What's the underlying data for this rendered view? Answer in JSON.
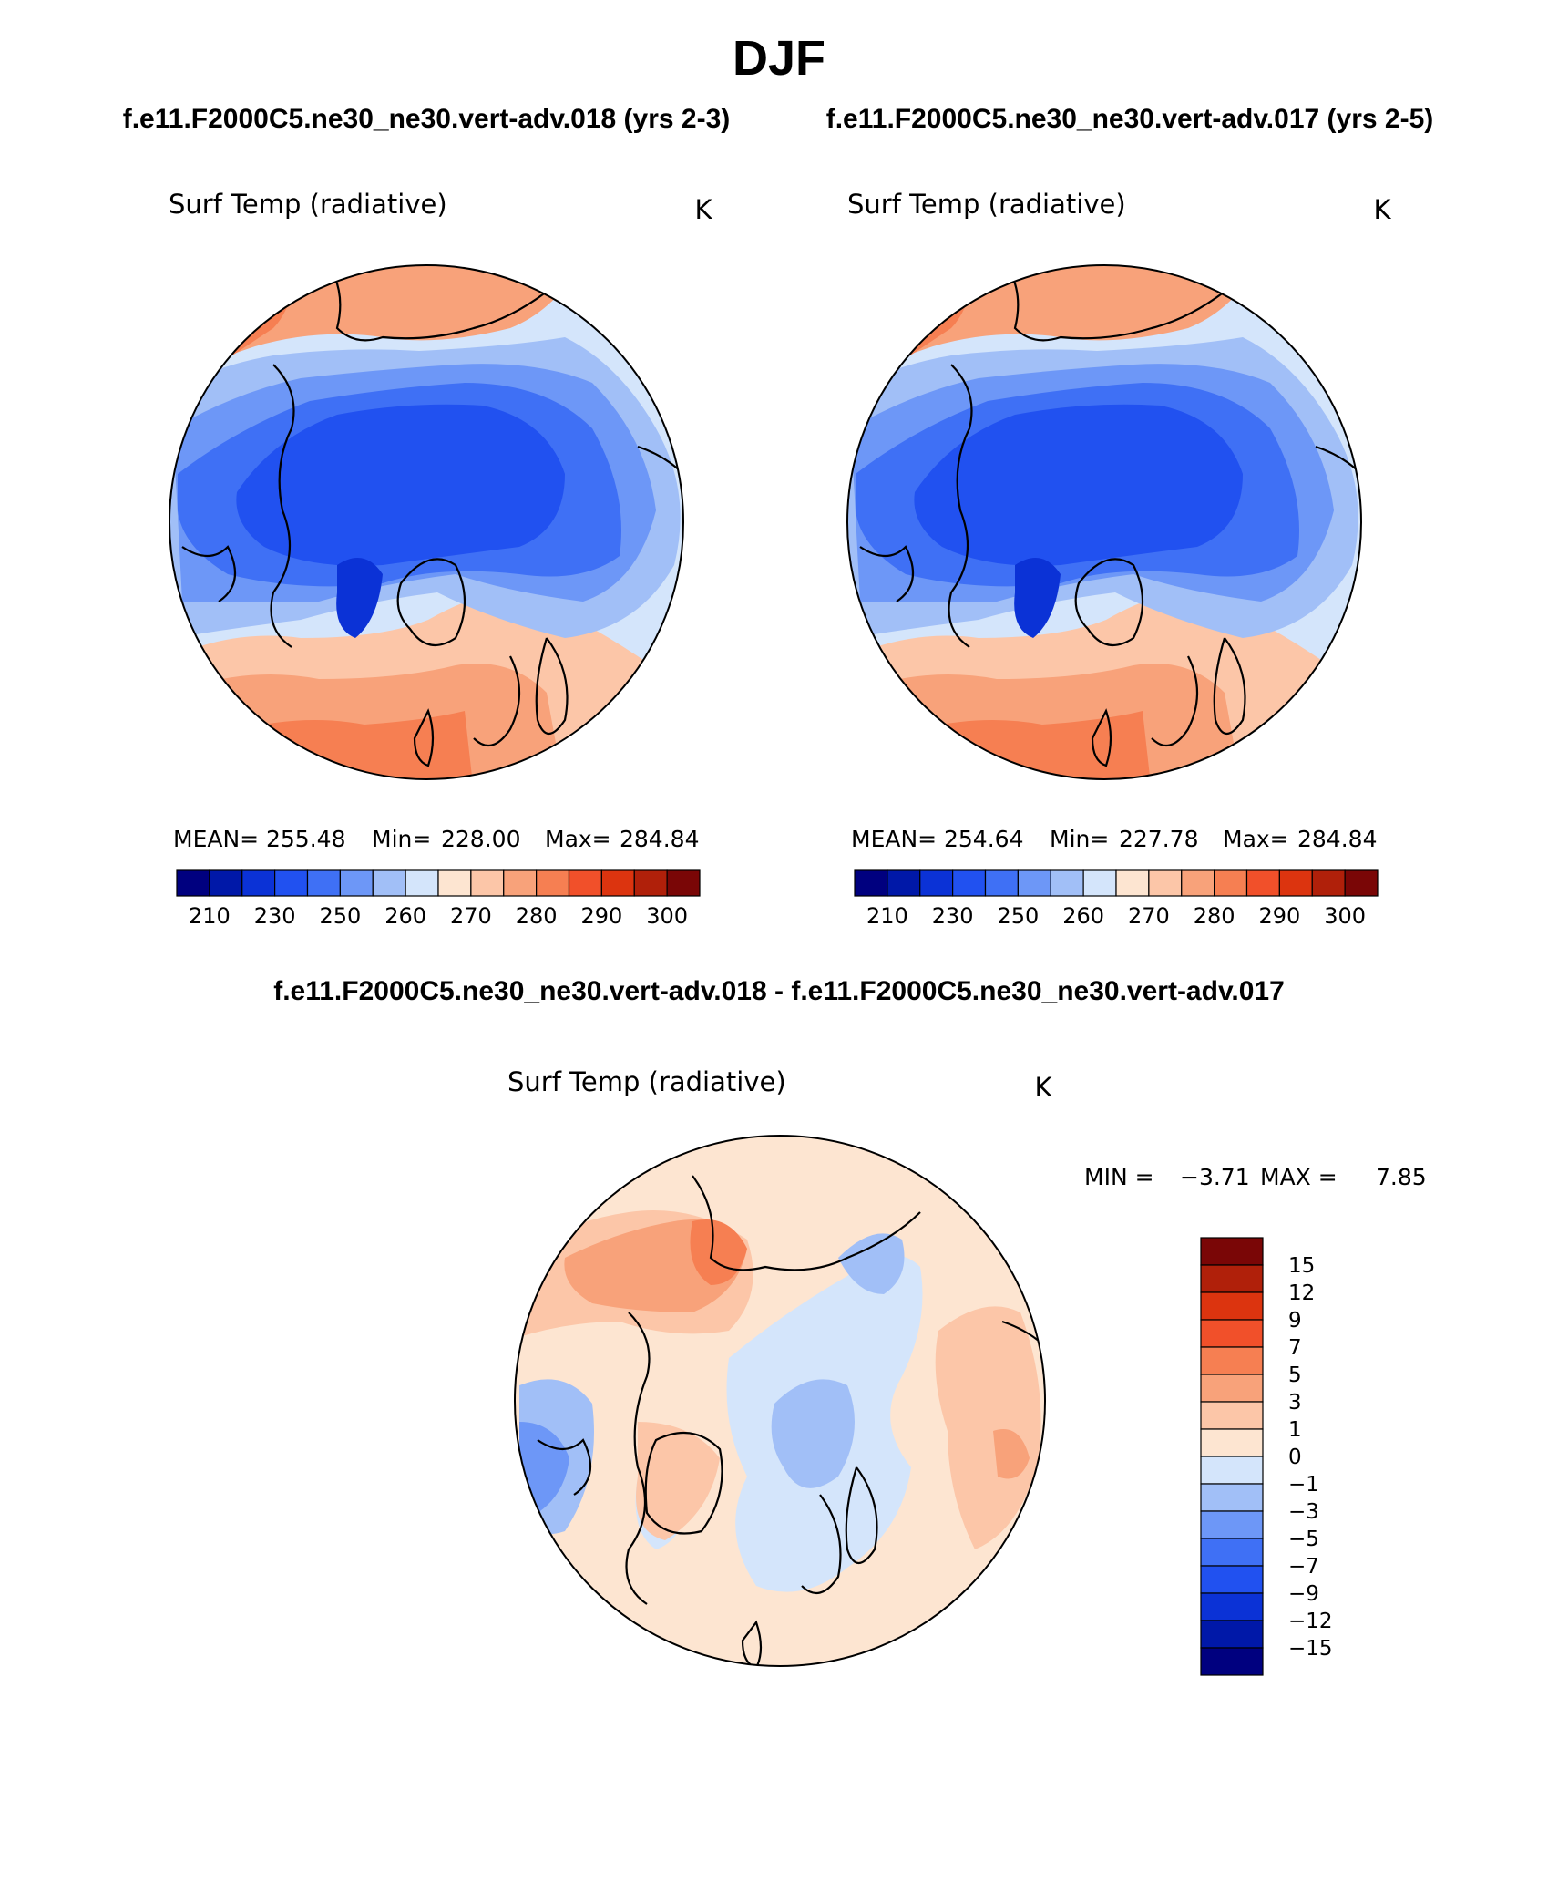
{
  "title": "DJF",
  "subtitle_left": "f.e11.F2000C5.ne30_ne30.vert-adv.018 (yrs 2-3)",
  "subtitle_right": "f.e11.F2000C5.ne30_ne30.vert-adv.017 (yrs 2-5)",
  "diff_title": "f.e11.F2000C5.ne30_ne30.vert-adv.018 - f.e11.F2000C5.ne30_ne30.vert-adv.017",
  "panels": [
    {
      "variable": "Surf Temp (radiative)",
      "units": "K",
      "stats": {
        "mean_label": "MEAN=",
        "mean": "255.48",
        "min_label": "Min=",
        "min": "228.00",
        "max_label": "Max=",
        "max": "284.84"
      }
    },
    {
      "variable": "Surf Temp (radiative)",
      "units": "K",
      "stats": {
        "mean_label": "MEAN=",
        "mean": "254.64",
        "min_label": "Min=",
        "min": "227.78",
        "max_label": "Max=",
        "max": "284.84"
      }
    }
  ],
  "abs_colorbar": {
    "colors": [
      "#00007f",
      "#0018a8",
      "#0b32d6",
      "#2151f0",
      "#3f70f5",
      "#6d97f7",
      "#a1bff7",
      "#d4e5fb",
      "#fde5d1",
      "#fcc6a8",
      "#f8a27a",
      "#f67f52",
      "#f1502a",
      "#dc340f",
      "#b0200a",
      "#7a0606"
    ],
    "tick_labels": [
      "210",
      "230",
      "250",
      "260",
      "270",
      "280",
      "290",
      "300"
    ]
  },
  "diff_panel": {
    "variable": "Surf Temp (radiative)",
    "units": "K",
    "min_label": "MIN =",
    "min": "−3.71",
    "max_label": "MAX =",
    "max": "7.85"
  },
  "diff_colorbar": {
    "colors_top_to_bottom": [
      "#7a0606",
      "#b0200a",
      "#dc340f",
      "#f1502a",
      "#f67f52",
      "#f8a27a",
      "#fcc6a8",
      "#fde5d1",
      "#d4e5fb",
      "#a1bff7",
      "#6d97f7",
      "#3f70f5",
      "#2151f0",
      "#0b32d6",
      "#0018a8",
      "#00007f"
    ],
    "tick_labels": [
      "15",
      "12",
      "9",
      "7",
      "5",
      "3",
      "1",
      "0",
      "−1",
      "−3",
      "−5",
      "−7",
      "−9",
      "−12",
      "−15"
    ]
  },
  "map_colors": {
    "warm_dark": "#f1502a",
    "warm": "#f67f52",
    "warm_mid": "#f8a27a",
    "warm_light": "#fcc6a8",
    "warm_pale": "#fde5d1",
    "cool_pale": "#d4e5fb",
    "cool_light": "#a1bff7",
    "cool_mid": "#6d97f7",
    "cool": "#3f70f5",
    "cool_deep": "#2151f0",
    "cool_dark": "#0b32d6"
  }
}
